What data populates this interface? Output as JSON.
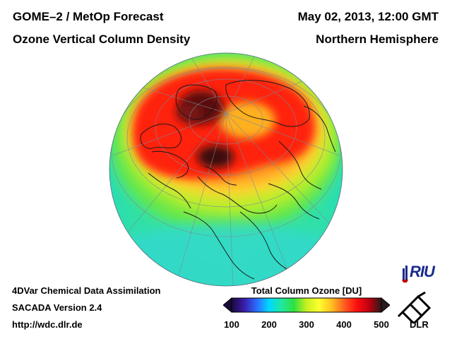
{
  "header": {
    "title_left_1": "GOME–2 / MetOp Forecast",
    "title_left_2": "Ozone Vertical Column Density",
    "title_right_1": "May 02, 2013, 12:00 GMT",
    "title_right_2": "Northern Hemisphere"
  },
  "footer": {
    "line1": "4DVar Chemical Data Assimilation",
    "line2": "SACADA Version 2.4",
    "line3": "http://wdc.dlr.de"
  },
  "colorbar": {
    "title": "Total Column Ozone [DU]",
    "min": 100,
    "max": 500,
    "ticks": [
      "100",
      "200",
      "300",
      "400",
      "500"
    ],
    "colors": [
      "#1a0a3c",
      "#3a1ca8",
      "#2a6cff",
      "#00d8ff",
      "#20e8a0",
      "#30e040",
      "#c8f020",
      "#ffff30",
      "#ffc020",
      "#ff6020",
      "#ff1010",
      "#c00010",
      "#2a1a1a"
    ]
  },
  "logos": {
    "riu": "RIU",
    "dlr": "DLR"
  },
  "map": {
    "projection": "orthographic",
    "hemisphere": "Northern Hemisphere",
    "quantity": "Total Column Ozone",
    "unit": "DU"
  }
}
